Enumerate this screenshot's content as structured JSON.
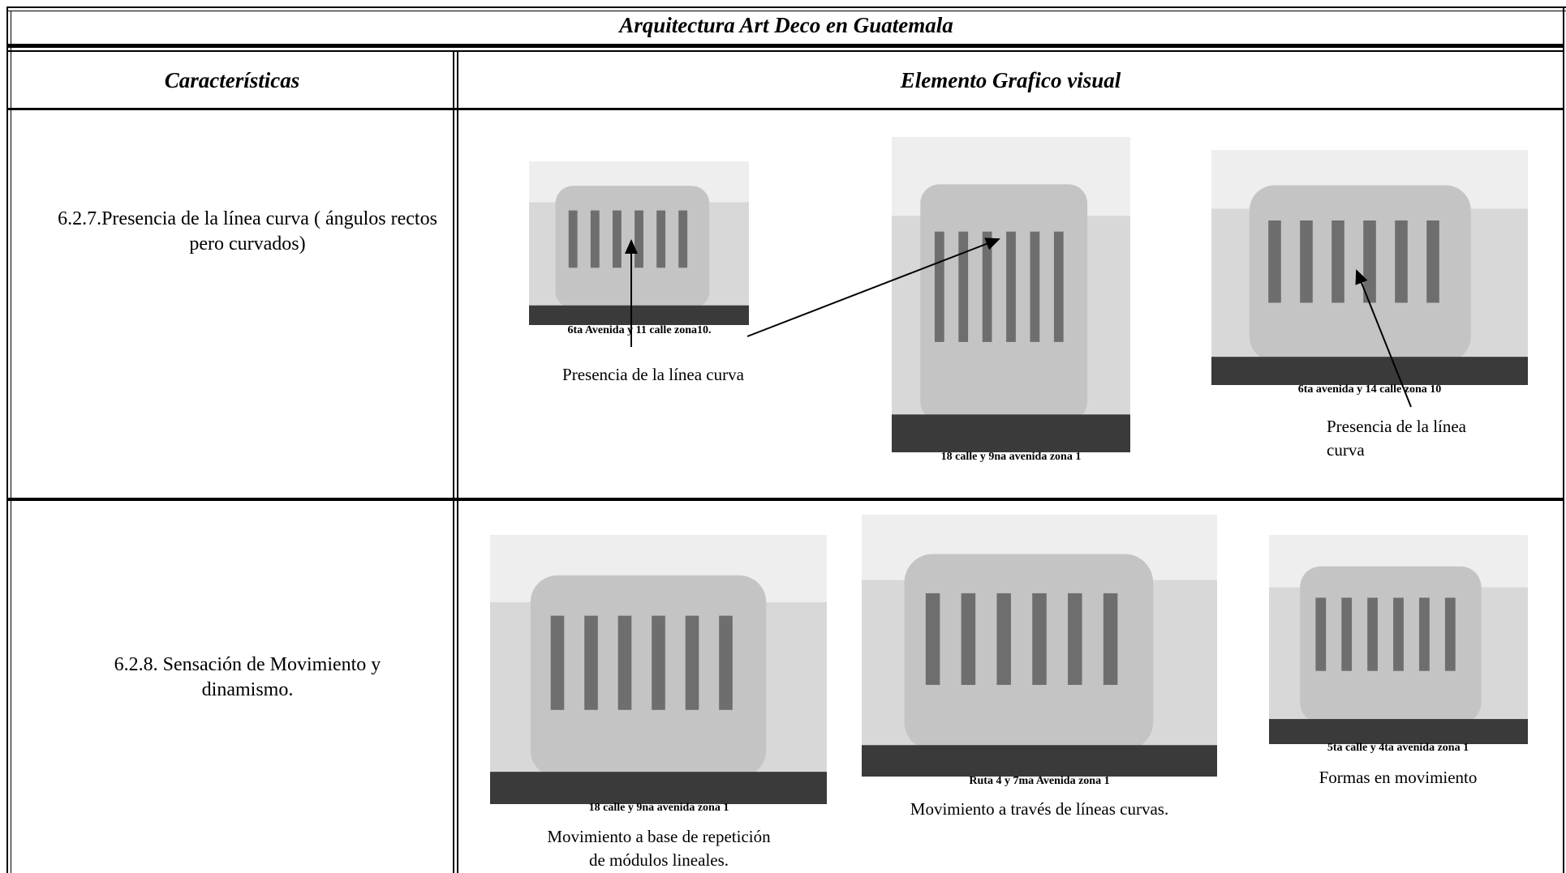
{
  "title": "Arquitectura Art Deco en Guatemala",
  "headers": [
    "Características",
    "Elemento Grafico visual"
  ],
  "rows": [
    {
      "characteristic": "6.2.7.Presencia de la línea curva ( ángulos rectos pero curvados)",
      "images": [
        {
          "caption": "6ta Avenida y 11 calle zona10.",
          "description": "Presencia de la línea curva"
        },
        {
          "caption": "18 calle y 9na avenida zona 1"
        },
        {
          "caption": "6ta avenida y 14 calle zona 10",
          "description": "Presencia de la línea curva"
        }
      ]
    },
    {
      "characteristic": "6.2.8. Sensación de Movimiento y dinamismo.",
      "images": [
        {
          "caption": "18 calle y 9na avenida zona 1",
          "description": "Movimiento a base de repetición de módulos lineales."
        },
        {
          "caption": "Ruta 4 y 7ma Avenida zona 1",
          "description": "Movimiento a través de líneas curvas."
        },
        {
          "caption": "5ta calle y 4ta avenida zona 1",
          "description": "Formas en movimiento"
        }
      ]
    }
  ]
}
